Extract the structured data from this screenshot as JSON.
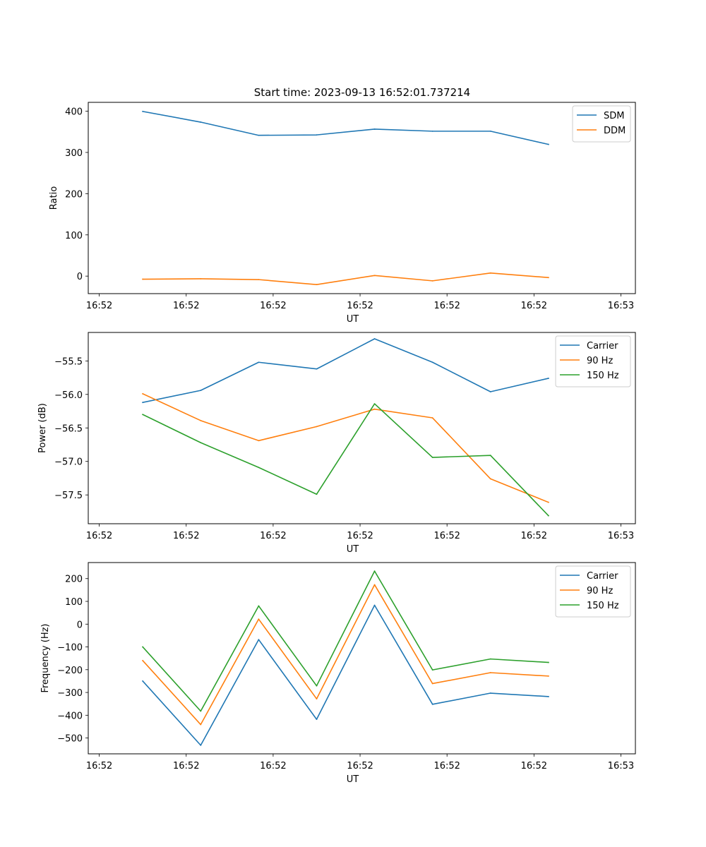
{
  "figure_title": "Start time: 2023-09-13 16:52:01.737214",
  "colors": {
    "blue": "#1f77b4",
    "orange": "#ff7f0e",
    "green": "#2ca02c"
  },
  "chart_data": [
    {
      "type": "line",
      "title": "Start time: 2023-09-13 16:52:01.737214",
      "xlabel": "UT",
      "ylabel": "Ratio",
      "x": [
        1,
        2,
        3,
        4,
        5,
        6,
        7,
        8
      ],
      "xlim": [
        0.06,
        9.5
      ],
      "ylim": [
        -42.5,
        421.5
      ],
      "xticks": [
        0.25,
        1.75,
        3.25,
        4.75,
        6.25,
        7.75,
        9.25
      ],
      "xticklabels": [
        "16:52",
        "16:52",
        "16:52",
        "16:52",
        "16:52",
        "16:52",
        "16:53"
      ],
      "yticks": [
        0,
        100,
        200,
        300,
        400
      ],
      "yticklabels": [
        "0",
        "100",
        "200",
        "300",
        "400"
      ],
      "legend_position": "top-right",
      "series": [
        {
          "name": "SDM",
          "color": "#1f77b4",
          "values": [
            399.5,
            373.5,
            341.5,
            342.5,
            356.5,
            351.5,
            351.5,
            319.5
          ]
        },
        {
          "name": "DDM",
          "color": "#ff7f0e",
          "values": [
            -7.5,
            -6.5,
            -8.5,
            -20.5,
            1.5,
            -11.5,
            7.5,
            -3.5
          ]
        }
      ]
    },
    {
      "type": "line",
      "title": "",
      "xlabel": "UT",
      "ylabel": "Power (dB)",
      "x": [
        1,
        2,
        3,
        4,
        5,
        6,
        7,
        8
      ],
      "xlim": [
        0.06,
        9.5
      ],
      "ylim": [
        -57.93,
        -55.075
      ],
      "xticks": [
        0.25,
        1.75,
        3.25,
        4.75,
        6.25,
        7.75,
        9.25
      ],
      "xticklabels": [
        "16:52",
        "16:52",
        "16:52",
        "16:52",
        "16:52",
        "16:52",
        "16:53"
      ],
      "yticks": [
        -57.5,
        -57.0,
        -56.5,
        -56.0,
        -55.5
      ],
      "yticklabels": [
        "−57.5",
        "−57.0",
        "−56.5",
        "−56.0",
        "−55.5"
      ],
      "legend_position": "top-right",
      "series": [
        {
          "name": "Carrier",
          "color": "#1f77b4",
          "values": [
            -56.12,
            -55.94,
            -55.52,
            -55.62,
            -55.17,
            -55.52,
            -55.96,
            -55.76
          ]
        },
        {
          "name": "90 Hz",
          "color": "#ff7f0e",
          "values": [
            -55.99,
            -56.39,
            -56.69,
            -56.48,
            -56.22,
            -56.35,
            -57.26,
            -57.61
          ]
        },
        {
          "name": "150 Hz",
          "color": "#2ca02c",
          "values": [
            -56.3,
            -56.72,
            -57.09,
            -57.49,
            -56.14,
            -56.94,
            -56.91,
            -57.81
          ]
        }
      ]
    },
    {
      "type": "line",
      "title": "",
      "xlabel": "UT",
      "ylabel": "Frequency (Hz)",
      "x": [
        1,
        2,
        3,
        4,
        5,
        6,
        7,
        8
      ],
      "xlim": [
        0.06,
        9.5
      ],
      "ylim": [
        -569.5,
        270.5
      ],
      "xticks": [
        0.25,
        1.75,
        3.25,
        4.75,
        6.25,
        7.75,
        9.25
      ],
      "xticklabels": [
        "16:52",
        "16:52",
        "16:52",
        "16:52",
        "16:52",
        "16:52",
        "16:53"
      ],
      "yticks": [
        -500,
        -400,
        -300,
        -200,
        -100,
        0,
        100,
        200
      ],
      "yticklabels": [
        "−500",
        "−400",
        "−300",
        "−200",
        "−100",
        "0",
        "100",
        "200"
      ],
      "legend_position": "top-right",
      "series": [
        {
          "name": "Carrier",
          "color": "#1f77b4",
          "values": [
            -250,
            -532,
            -68,
            -418,
            83,
            -352,
            -303,
            -318
          ]
        },
        {
          "name": "90 Hz",
          "color": "#ff7f0e",
          "values": [
            -160,
            -441,
            22,
            -328,
            173,
            -261,
            -213,
            -228
          ]
        },
        {
          "name": "150 Hz",
          "color": "#2ca02c",
          "values": [
            -100,
            -382,
            80,
            -271,
            233,
            -201,
            -153,
            -168
          ]
        }
      ]
    }
  ]
}
